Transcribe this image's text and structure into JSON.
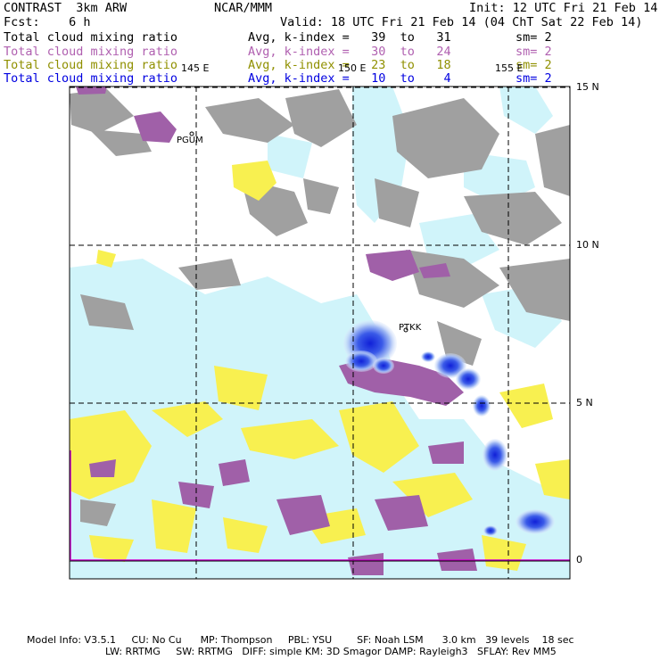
{
  "header": {
    "left_title": "CONTRAST  3km ARW",
    "center_title": "NCAR/MMM",
    "init": "Init: 12 UTC Fri 21 Feb 14",
    "fcst": "Fcst:    6 h",
    "valid": "Valid: 18 UTC Fri 21 Feb 14 (04 ChT Sat 22 Feb 14)"
  },
  "legend": [
    {
      "name": "Total cloud mixing ratio",
      "range": "Avg, k-index =   39  to   31",
      "sm": "sm= 2",
      "color": "#000000"
    },
    {
      "name": "Total cloud mixing ratio",
      "range": "Avg, k-index =   30  to   24",
      "sm": "sm= 2",
      "color": "#b060b0"
    },
    {
      "name": "Total cloud mixing ratio",
      "range": "Avg, k-index =   23  to   18",
      "sm": "sm= 2",
      "color": "#909000"
    },
    {
      "name": "Total cloud mixing ratio",
      "range": "Avg, k-index =   10  to    4",
      "sm": "sm= 2",
      "color": "#0000e0"
    }
  ],
  "map": {
    "lon_labels": [
      "145 E",
      "150 E",
      "155 E"
    ],
    "lat_labels": [
      "15 N",
      "10 N",
      "5 N",
      "0"
    ],
    "stations": [
      "PGUM",
      "PTKK"
    ],
    "colors": {
      "gray": "#a0a0a0",
      "purple": "#a060a8",
      "yellow": "#f8f050",
      "cyan": "#d0f4fa",
      "blue": "#2030e0",
      "boundary": "#d000d0"
    }
  },
  "footer": {
    "line1": "Model Info: V3.5.1     CU: No Cu      MP: Thompson     PBL: YSU        SF: Noah LSM      3.0 km   39 levels    18 sec",
    "line2": "LW: RRTMG     SW: RRTMG   DIFF: simple KM: 3D Smagor DAMP: Rayleigh3   SFLAY: Rev MM5"
  }
}
